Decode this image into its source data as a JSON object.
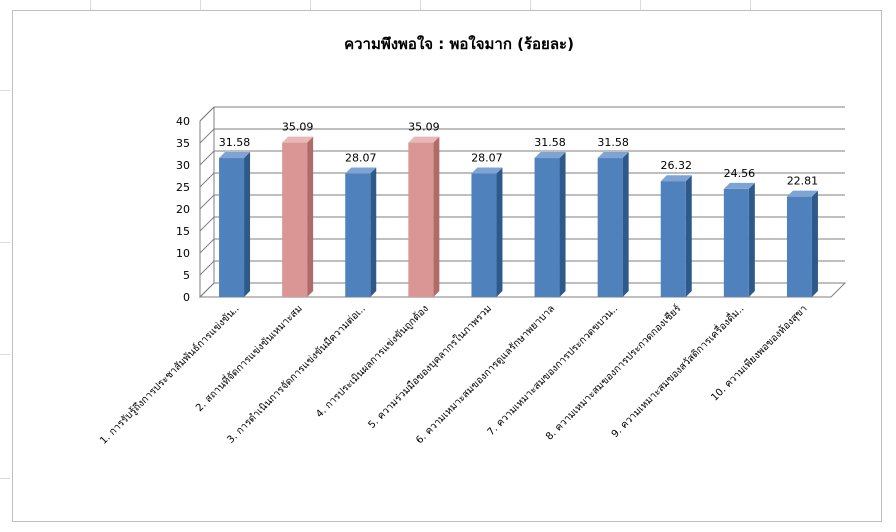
{
  "chart_data": {
    "type": "bar",
    "title": "ความพึงพอใจ : พอใจมาก (ร้อยละ)",
    "xlabel": "",
    "ylabel": "",
    "ylim": [
      0,
      40
    ],
    "yticks": [
      0,
      5,
      10,
      15,
      20,
      25,
      30,
      35,
      40
    ],
    "grid": true,
    "three_d": true,
    "categories": [
      "1. การรับรู้ถึงการประชาสัมพันธ์การแข่งขัน..",
      "2. สถานที่จัดการแข่งขันเหมาะสม",
      "3. การดำเนินการจัดการแข่งขันมีความต่อเ..",
      "4. การประเมินผลการแข่งขันถูกต้อง",
      "5. ความร่วมมือของบุคลากรในภาพรวม",
      "6. ความเหมาะสมของการดูแลรักษาพยาบาล",
      "7. ความเหมาะสมของการประกวดขบวน..",
      "8. ความเหมาะสมของการประกวดกองเชียร์",
      "9. ความเหมาะสมของสวัสดิการเครื่องดื่ม..",
      "10. ความเพียงพอของห้องสุขา"
    ],
    "values": [
      31.58,
      35.09,
      28.07,
      35.09,
      28.07,
      31.58,
      31.58,
      26.32,
      24.56,
      22.81
    ],
    "value_labels": [
      "31.58",
      "35.09",
      "28.07",
      "35.09",
      "28.07",
      "31.58",
      "31.58",
      "26.32",
      "24.56",
      "22.81"
    ],
    "colors": {
      "normal": "#4f81bd",
      "highlight": "#d99694"
    },
    "highlighted_indices": [
      1,
      3
    ]
  }
}
